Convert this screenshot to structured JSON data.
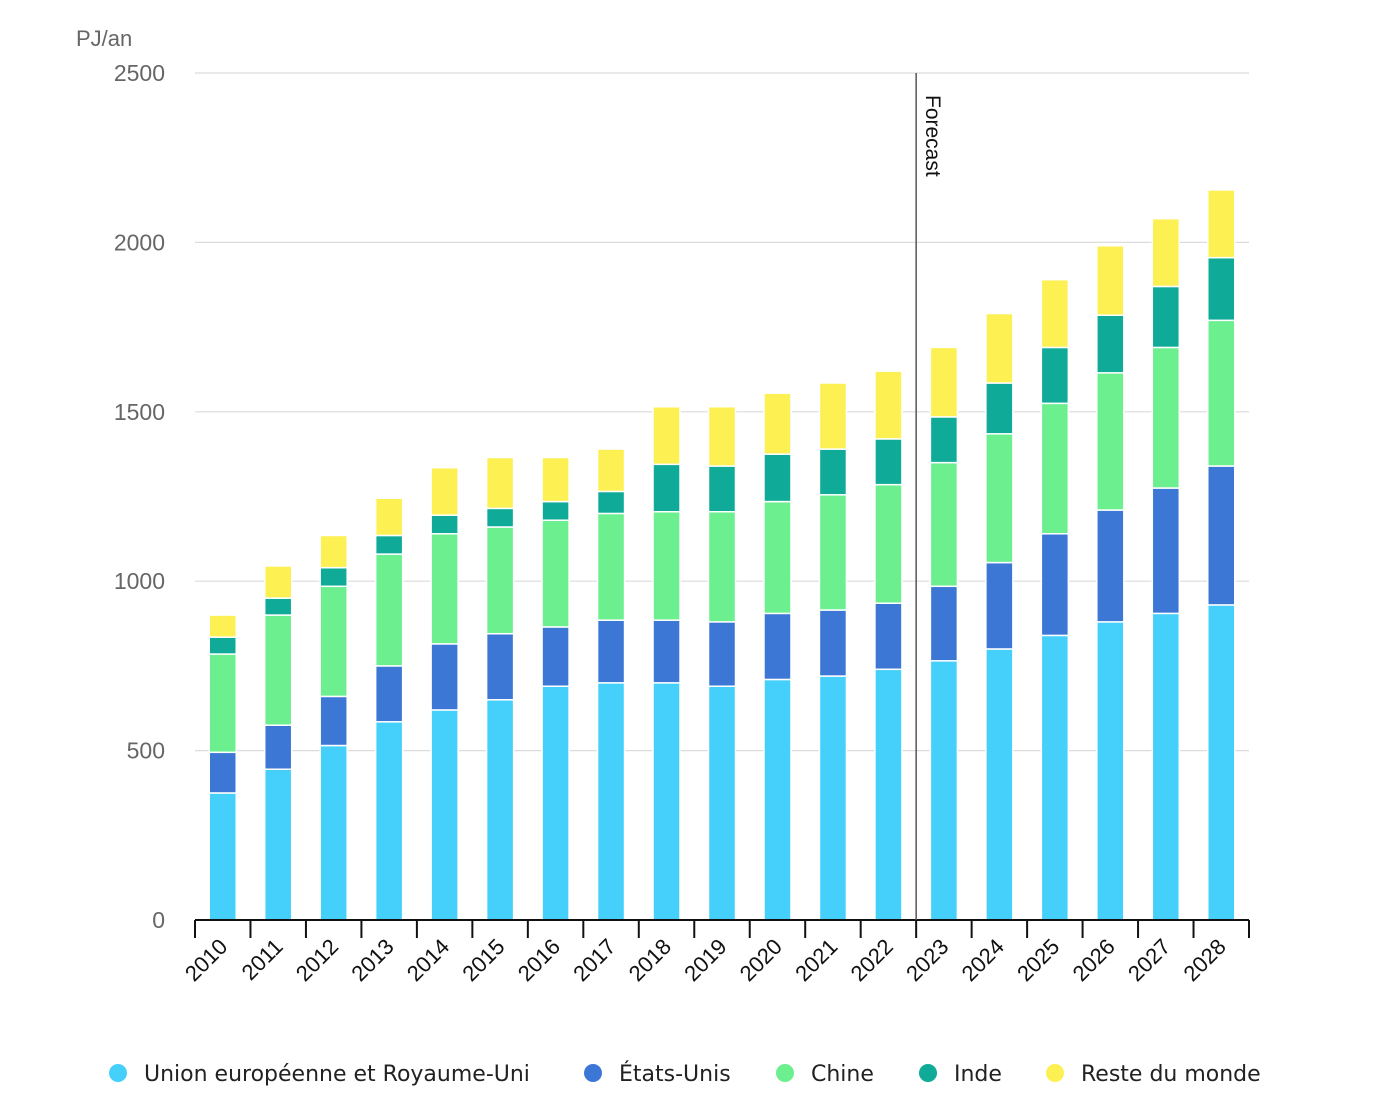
{
  "chart_data": {
    "type": "bar",
    "stacked": true,
    "unit_label": "PJ/an",
    "categories": [
      "2010",
      "2011",
      "2012",
      "2013",
      "2014",
      "2015",
      "2016",
      "2017",
      "2018",
      "2019",
      "2020",
      "2021",
      "2022",
      "2023",
      "2024",
      "2025",
      "2026",
      "2027",
      "2028"
    ],
    "ylim": [
      0,
      2500
    ],
    "yticks": [
      0,
      500,
      1000,
      1500,
      2000,
      2500
    ],
    "grid": true,
    "legend_position": "bottom",
    "forecast_label": "Forecast",
    "forecast_after": "2022",
    "series": [
      {
        "name": "Union européenne et Royaume-Uni",
        "color": "#45d0fb",
        "values": [
          375,
          445,
          515,
          585,
          620,
          650,
          690,
          700,
          700,
          690,
          710,
          720,
          740,
          765,
          800,
          840,
          880,
          905,
          930
        ]
      },
      {
        "name": "États-Unis",
        "color": "#3d77d5",
        "values": [
          120,
          130,
          145,
          165,
          195,
          195,
          175,
          185,
          185,
          190,
          195,
          195,
          195,
          220,
          255,
          300,
          330,
          370,
          410
        ]
      },
      {
        "name": "Chine",
        "color": "#6cef8f",
        "values": [
          290,
          325,
          325,
          330,
          325,
          315,
          315,
          315,
          320,
          325,
          330,
          340,
          350,
          365,
          380,
          385,
          405,
          415,
          430
        ]
      },
      {
        "name": "Inde",
        "color": "#0faa98",
        "values": [
          50,
          50,
          55,
          55,
          55,
          55,
          55,
          65,
          140,
          135,
          140,
          135,
          135,
          135,
          150,
          165,
          170,
          180,
          185
        ]
      },
      {
        "name": "Reste du monde",
        "color": "#fdf052",
        "values": [
          65,
          95,
          95,
          110,
          140,
          150,
          130,
          125,
          170,
          175,
          180,
          195,
          200,
          205,
          205,
          200,
          205,
          200,
          200
        ]
      }
    ]
  }
}
